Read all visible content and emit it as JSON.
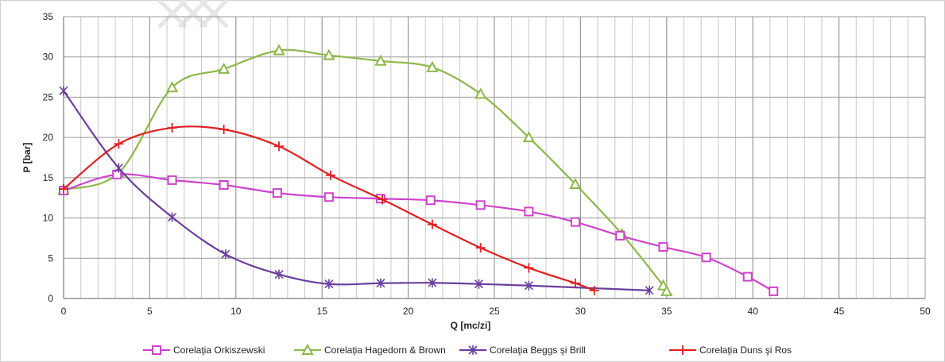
{
  "chart_data": {
    "type": "line",
    "title": "",
    "xlabel": "Q [mc/zi]",
    "ylabel": "P [bar]",
    "xlim": [
      0,
      50
    ],
    "ylim": [
      0,
      35
    ],
    "x_ticks": [
      0,
      5,
      10,
      15,
      20,
      25,
      30,
      35,
      40,
      45,
      50
    ],
    "y_ticks": [
      0,
      5,
      10,
      15,
      20,
      25,
      30,
      35
    ],
    "grid": true,
    "legend_position": "bottom",
    "series": [
      {
        "name": "Corelaţia Orkiszewski",
        "color": "#cc44cc",
        "marker": "square",
        "points": [
          [
            0,
            13.4
          ],
          [
            3.1,
            15.4
          ],
          [
            6.3,
            14.7
          ],
          [
            9.3,
            14.1
          ],
          [
            12.4,
            13.1
          ],
          [
            15.4,
            12.6
          ],
          [
            18.4,
            12.4
          ],
          [
            21.3,
            12.2
          ],
          [
            24.2,
            11.6
          ],
          [
            27.0,
            10.8
          ],
          [
            29.7,
            9.5
          ],
          [
            32.3,
            7.8
          ],
          [
            34.8,
            6.4
          ],
          [
            37.3,
            5.1
          ],
          [
            39.7,
            2.7
          ],
          [
            41.2,
            0.9
          ]
        ]
      },
      {
        "name": "Corelaţia Hagedorn & Brown",
        "color": "#8db84a",
        "marker": "triangle",
        "points": [
          [
            0,
            13.5
          ],
          [
            3.2,
            15.6
          ],
          [
            6.3,
            26.2
          ],
          [
            9.3,
            28.5
          ],
          [
            12.5,
            30.8
          ],
          [
            15.4,
            30.2
          ],
          [
            18.4,
            29.5
          ],
          [
            21.4,
            28.7
          ],
          [
            24.2,
            25.4
          ],
          [
            27.0,
            20.0
          ],
          [
            29.7,
            14.2
          ],
          [
            32.4,
            8.0
          ],
          [
            34.8,
            1.6
          ],
          [
            35.0,
            0.9
          ]
        ]
      },
      {
        "name": "Corelaţia Beggs şi Brill",
        "color": "#6a3f9e",
        "marker": "star",
        "points": [
          [
            0,
            25.8
          ],
          [
            3.2,
            16.2
          ],
          [
            6.3,
            10.1
          ],
          [
            9.4,
            5.5
          ],
          [
            12.5,
            3.0
          ],
          [
            15.4,
            1.8
          ],
          [
            18.4,
            1.9
          ],
          [
            21.4,
            1.95
          ],
          [
            24.1,
            1.8
          ],
          [
            27.0,
            1.6
          ],
          [
            34.0,
            1.0
          ]
        ]
      },
      {
        "name": "Corelaţia Duns şi Ros",
        "color": "#e02020",
        "marker": "plus",
        "points": [
          [
            0,
            13.6
          ],
          [
            3.2,
            19.2
          ],
          [
            6.3,
            21.2
          ],
          [
            9.3,
            21.0
          ],
          [
            12.5,
            18.9
          ],
          [
            15.5,
            15.3
          ],
          [
            18.5,
            12.3
          ],
          [
            21.4,
            9.2
          ],
          [
            24.2,
            6.3
          ],
          [
            27.0,
            3.8
          ],
          [
            29.7,
            1.9
          ],
          [
            30.8,
            1.0
          ]
        ]
      }
    ]
  }
}
